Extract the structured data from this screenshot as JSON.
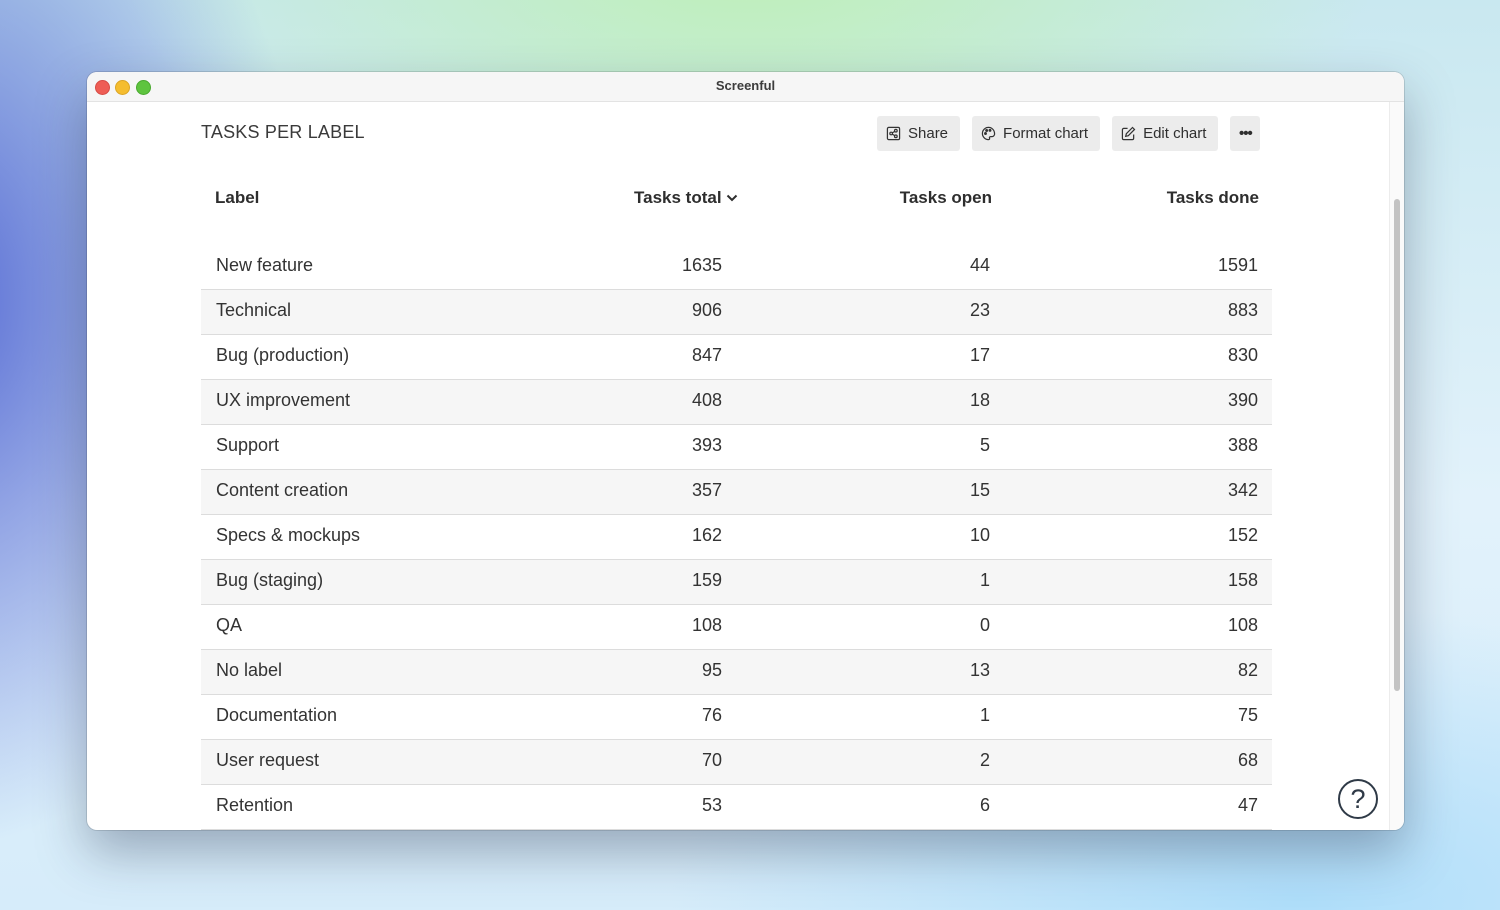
{
  "window": {
    "title": "Screenful"
  },
  "page": {
    "title": "TASKS PER LABEL"
  },
  "toolbar": {
    "share_label": "Share",
    "format_label": "Format chart",
    "edit_label": "Edit chart",
    "more_label": "•••"
  },
  "table": {
    "columns": [
      "Label",
      "Tasks total",
      "Tasks open",
      "Tasks done"
    ],
    "sorted_column": "Tasks total",
    "sort_direction": "descending",
    "rows": [
      [
        "New feature",
        "1635",
        "44",
        "1591"
      ],
      [
        "Technical",
        "906",
        "23",
        "883"
      ],
      [
        "Bug (production)",
        "847",
        "17",
        "830"
      ],
      [
        "UX improvement",
        "408",
        "18",
        "390"
      ],
      [
        "Support",
        "393",
        "5",
        "388"
      ],
      [
        "Content creation",
        "357",
        "15",
        "342"
      ],
      [
        "Specs & mockups",
        "162",
        "10",
        "152"
      ],
      [
        "Bug (staging)",
        "159",
        "1",
        "158"
      ],
      [
        "QA",
        "108",
        "0",
        "108"
      ],
      [
        "No label",
        "95",
        "13",
        "82"
      ],
      [
        "Documentation",
        "76",
        "1",
        "75"
      ],
      [
        "User request",
        "70",
        "2",
        "68"
      ],
      [
        "Retention",
        "53",
        "6",
        "47"
      ]
    ]
  },
  "help": {
    "label": "?"
  },
  "colors": {
    "row_stripe": "#f6f6f6",
    "button_bg": "#ececec",
    "text": "#333333"
  }
}
